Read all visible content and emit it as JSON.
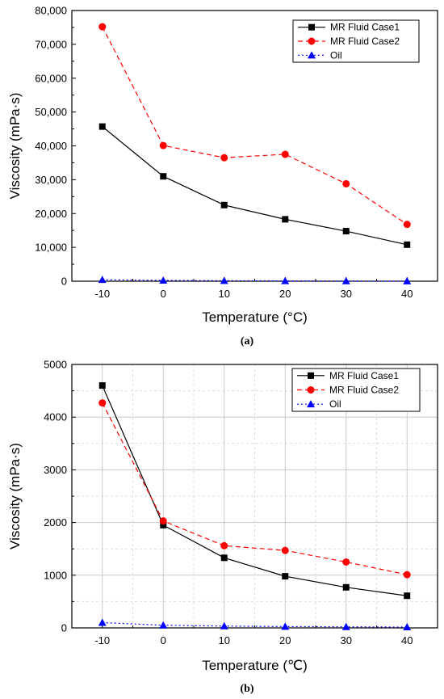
{
  "chart_data": [
    {
      "type": "line",
      "caption": "(a)",
      "xlabel": "Temperature (°C)",
      "ylabel": "Viscosity (mPa·s)",
      "x": [
        -10,
        0,
        10,
        20,
        30,
        40
      ],
      "xlim": [
        -15,
        45
      ],
      "ylim": [
        0,
        80000
      ],
      "xticks": [
        "-10",
        "0",
        "10",
        "20",
        "30",
        "40"
      ],
      "yticks": [
        "0",
        "10,000",
        "20,000",
        "30,000",
        "40,000",
        "50,000",
        "60,000",
        "70,000",
        "80,000"
      ],
      "grid": false,
      "legend_position": "top-right",
      "series": [
        {
          "name": "MR Fluid Case1",
          "values": [
            45700,
            31000,
            22500,
            18300,
            14800,
            10800
          ],
          "color": "#000000",
          "line": "solid",
          "marker": "square"
        },
        {
          "name": "MR Fluid Case2",
          "values": [
            75200,
            40100,
            36500,
            37500,
            28800,
            16800
          ],
          "color": "#ff0000",
          "line": "dashed",
          "marker": "circle"
        },
        {
          "name": "Oil",
          "values": [
            450,
            250,
            150,
            100,
            60,
            30
          ],
          "color": "#0000ff",
          "line": "dotted",
          "marker": "triangle"
        }
      ]
    },
    {
      "type": "line",
      "caption": "(b)",
      "xlabel": "Temperature (℃)",
      "ylabel": "Viscosity (mPa·s)",
      "x": [
        -10,
        0,
        10,
        20,
        30,
        40
      ],
      "xlim": [
        -15,
        45
      ],
      "ylim": [
        0,
        5000
      ],
      "xticks": [
        "-10",
        "0",
        "10",
        "20",
        "30",
        "40"
      ],
      "yticks": [
        "0",
        "1000",
        "2000",
        "3000",
        "4000",
        "5000"
      ],
      "grid": true,
      "legend_position": "top-right",
      "series": [
        {
          "name": "MR Fluid Case1",
          "values": [
            4600,
            1950,
            1330,
            980,
            770,
            610
          ],
          "color": "#000000",
          "line": "solid",
          "marker": "square"
        },
        {
          "name": "MR Fluid Case2",
          "values": [
            4270,
            2030,
            1560,
            1470,
            1250,
            1010
          ],
          "color": "#ff0000",
          "line": "dashed",
          "marker": "circle"
        },
        {
          "name": "Oil",
          "values": [
            100,
            50,
            35,
            25,
            20,
            15
          ],
          "color": "#0000ff",
          "line": "dotted",
          "marker": "triangle"
        }
      ]
    }
  ]
}
